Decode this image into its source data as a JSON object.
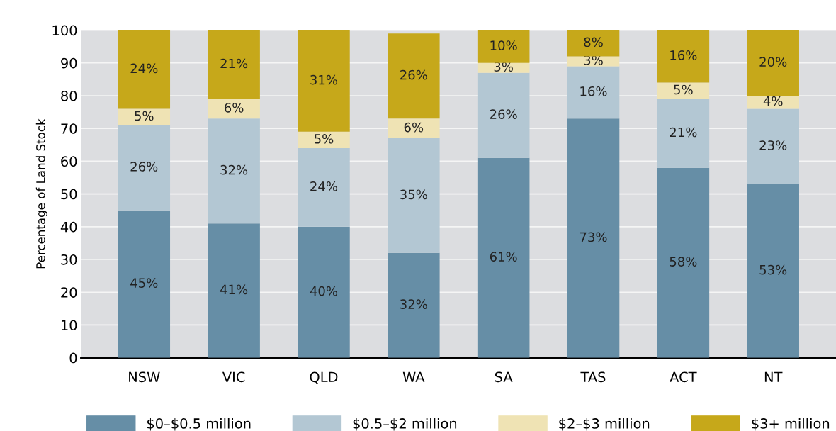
{
  "chart_data": {
    "type": "bar",
    "stacked": true,
    "ylabel": "Percentage of Land Stock",
    "categories": [
      "NSW",
      "VIC",
      "QLD",
      "WA",
      "SA",
      "TAS",
      "ACT",
      "NT"
    ],
    "series": [
      {
        "name": "$0–$0.5 million",
        "color": "#668ea6",
        "values": [
          45,
          41,
          40,
          32,
          61,
          73,
          58,
          53
        ],
        "value_labels": [
          "45%",
          "41%",
          "40%",
          "32%",
          "61%",
          "73%",
          "58%",
          "53%"
        ]
      },
      {
        "name": "$0.5–$2 million",
        "color": "#b3c7d3",
        "values": [
          26,
          32,
          24,
          35,
          26,
          16,
          21,
          23
        ],
        "value_labels": [
          "26%",
          "32%",
          "24%",
          "35%",
          "26%",
          "16%",
          "21%",
          "23%"
        ]
      },
      {
        "name": "$2–$3 million",
        "color": "#efe3b4",
        "values": [
          5,
          6,
          5,
          6,
          3,
          3,
          5,
          4
        ],
        "value_labels": [
          "5%",
          "6%",
          "5%",
          "6%",
          "3%",
          "3%",
          "5%",
          "4%"
        ]
      },
      {
        "name": "$3+ million",
        "color": "#c6a81a",
        "values": [
          24,
          21,
          31,
          26,
          10,
          8,
          16,
          20
        ],
        "value_labels": [
          "24%",
          "21%",
          "31%",
          "26%",
          "10%",
          "8%",
          "16%",
          "20%"
        ]
      }
    ],
    "ylim": [
      0,
      100
    ],
    "yticks": [
      0,
      10,
      20,
      30,
      40,
      50,
      60,
      70,
      80,
      90,
      100
    ],
    "grid": "y",
    "legend": "bottom"
  }
}
